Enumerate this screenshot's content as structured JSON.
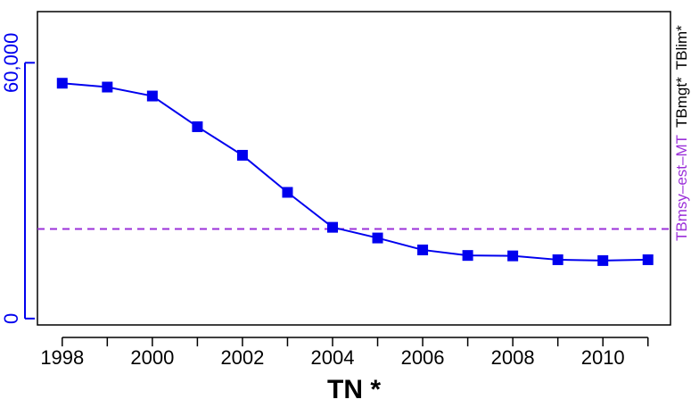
{
  "chart_data": {
    "type": "line",
    "xlabel": "TN *",
    "x": [
      1998,
      1999,
      2000,
      2001,
      2002,
      2003,
      2004,
      2005,
      2006,
      2007,
      2008,
      2009,
      2010,
      2011
    ],
    "x_ticks_minor": [
      1998,
      1999,
      2000,
      2001,
      2002,
      2003,
      2004,
      2005,
      2006,
      2007,
      2008,
      2009,
      2010,
      2011
    ],
    "x_tick_labels": [
      "1998",
      "2000",
      "2002",
      "2004",
      "2006",
      "2008",
      "2010"
    ],
    "x_tick_label_values": [
      1998,
      2000,
      2002,
      2004,
      2006,
      2008,
      2010
    ],
    "xlim": [
      1997.45,
      2011.5
    ],
    "ylim": [
      -1500,
      72000
    ],
    "y_ticks": [
      0,
      60000
    ],
    "y_tick_labels": [
      "0",
      "60,000"
    ],
    "series": [
      {
        "values": [
          55200,
          54300,
          52200,
          45000,
          38300,
          29600,
          21400,
          18900,
          16100,
          14800,
          14700,
          13800,
          13600,
          13800
        ],
        "color": "#0000ee",
        "marker": "square"
      }
    ],
    "reference_lines": [
      {
        "label": "TBmsy–est–MT",
        "y": 21000,
        "color": "#9b30d9",
        "style": "dashed"
      }
    ],
    "right_labels": [
      {
        "text": "TBmsy–est–MT",
        "color": "#9b30d9"
      },
      {
        "text": "TBmgt*",
        "color": "#000000"
      },
      {
        "text": "TBlim*",
        "color": "#000000"
      }
    ],
    "grid": false,
    "axis_color_left": "#0000ee"
  }
}
